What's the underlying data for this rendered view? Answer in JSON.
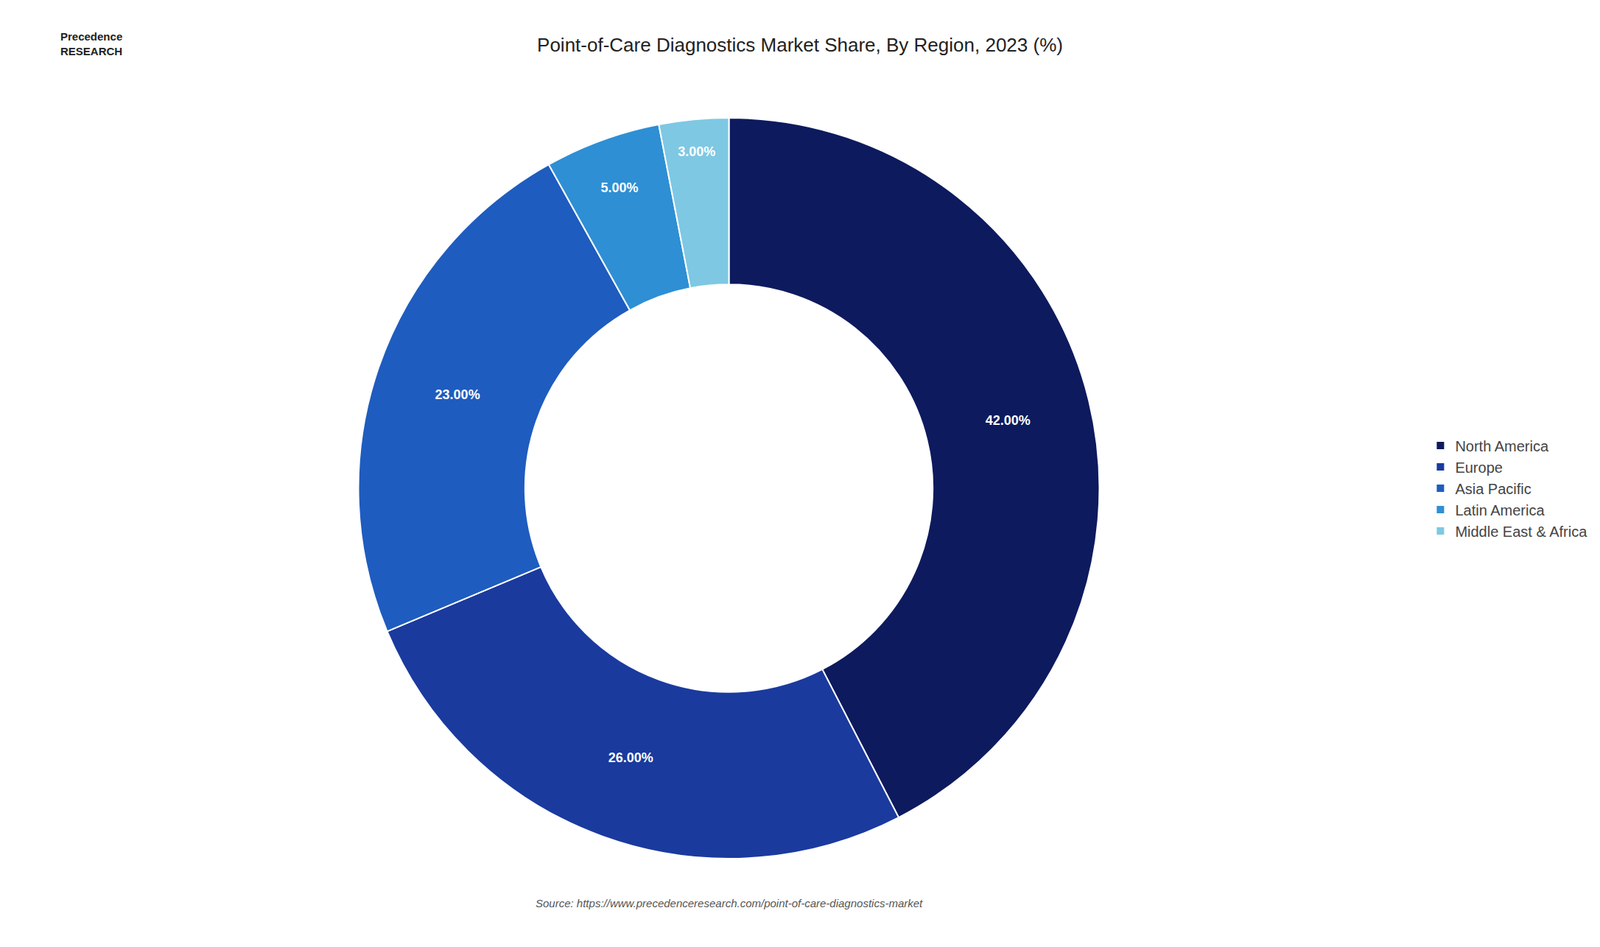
{
  "chart_data": {
    "type": "pie",
    "title": "Point-of-Care Diagnostics Market Share, By Region, 2023 (%)",
    "categories": [
      "North America",
      "Europe",
      "Asia Pacific",
      "Latin America",
      "Middle East & Africa"
    ],
    "values": [
      42.0,
      26.0,
      23.0,
      5.0,
      3.0
    ],
    "value_labels": [
      "42.00%",
      "26.00%",
      "23.00%",
      "5.00%",
      "3.00%"
    ],
    "colors": [
      "#0d1a5e",
      "#1a3a9e",
      "#1e5cbf",
      "#2e8fd4",
      "#7ec8e3"
    ],
    "data_labels": true,
    "legend": "right",
    "annotations": [
      "Source: https://www.precedenceresearch.com/point-of-care-diagnostics-market",
      "Precedence\nRESEARCH"
    ]
  }
}
